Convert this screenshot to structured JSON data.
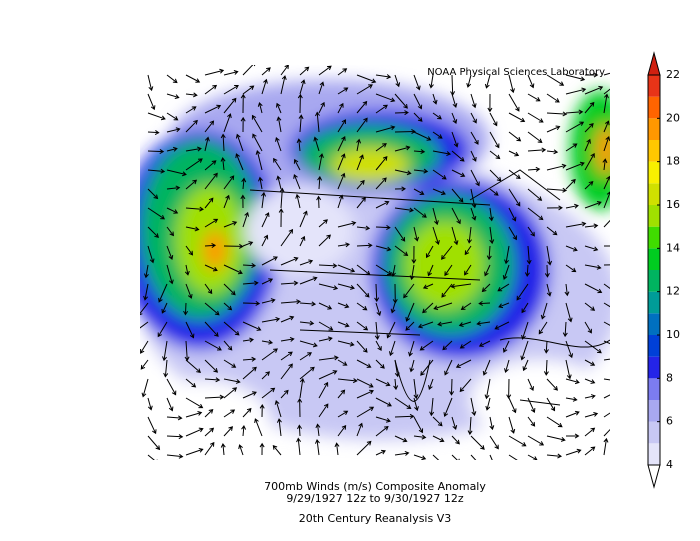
{
  "credit": "NOAA Physical Sciences Laboratory",
  "caption": {
    "line1": "700mb Winds (m/s)   Composite Anomaly",
    "line2": "9/29/1927 12z  to 9/30/1927 12z",
    "line3": "20th Century Reanalysis V3"
  },
  "colorbar": {
    "bounds": [
      4,
      5,
      6,
      7,
      8,
      9,
      10,
      11,
      12,
      13,
      14,
      15,
      16,
      17,
      18,
      19,
      20,
      21,
      22
    ],
    "colors": [
      "#e4e4fa",
      "#c8c8f4",
      "#a8a8f0",
      "#7c7cf0",
      "#2424e8",
      "#0040d8",
      "#0070c0",
      "#009c98",
      "#00b460",
      "#00cc20",
      "#40dc00",
      "#a0e000",
      "#d0e000",
      "#f8f000",
      "#ffc800",
      "#ff9800",
      "#ff6400",
      "#e83418"
    ],
    "ticks": [
      4,
      6,
      8,
      10,
      12,
      14,
      16,
      18,
      20,
      22
    ]
  }
}
